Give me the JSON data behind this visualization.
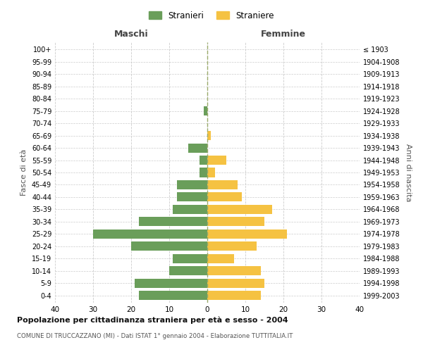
{
  "age_groups": [
    "0-4",
    "5-9",
    "10-14",
    "15-19",
    "20-24",
    "25-29",
    "30-34",
    "35-39",
    "40-44",
    "45-49",
    "50-54",
    "55-59",
    "60-64",
    "65-69",
    "70-74",
    "75-79",
    "80-84",
    "85-89",
    "90-94",
    "95-99",
    "100+"
  ],
  "birth_years": [
    "1999-2003",
    "1994-1998",
    "1989-1993",
    "1984-1988",
    "1979-1983",
    "1974-1978",
    "1969-1973",
    "1964-1968",
    "1959-1963",
    "1954-1958",
    "1949-1953",
    "1944-1948",
    "1939-1943",
    "1934-1938",
    "1929-1933",
    "1924-1928",
    "1919-1923",
    "1914-1918",
    "1909-1913",
    "1904-1908",
    "≤ 1903"
  ],
  "maschi": [
    18,
    19,
    10,
    9,
    20,
    30,
    18,
    9,
    8,
    8,
    2,
    2,
    5,
    0,
    0,
    1,
    0,
    0,
    0,
    0,
    0
  ],
  "femmine": [
    14,
    15,
    14,
    7,
    13,
    21,
    15,
    17,
    9,
    8,
    2,
    5,
    0,
    1,
    0,
    0,
    0,
    0,
    0,
    0,
    0
  ],
  "color_maschi": "#6a9e5a",
  "color_femmine": "#f5c242",
  "title": "Popolazione per cittadinanza straniera per età e sesso - 2004",
  "subtitle": "COMUNE DI TRUCCAZZANO (MI) - Dati ISTAT 1° gennaio 2004 - Elaborazione TUTTITALIA.IT",
  "xlabel_left": "Maschi",
  "xlabel_right": "Femmine",
  "ylabel_left": "Fasce di età",
  "ylabel_right": "Anni di nascita",
  "legend_maschi": "Stranieri",
  "legend_femmine": "Straniere",
  "xlim": 40,
  "background_color": "#ffffff",
  "grid_color": "#cccccc",
  "dashed_line_color": "#9aaa6a"
}
